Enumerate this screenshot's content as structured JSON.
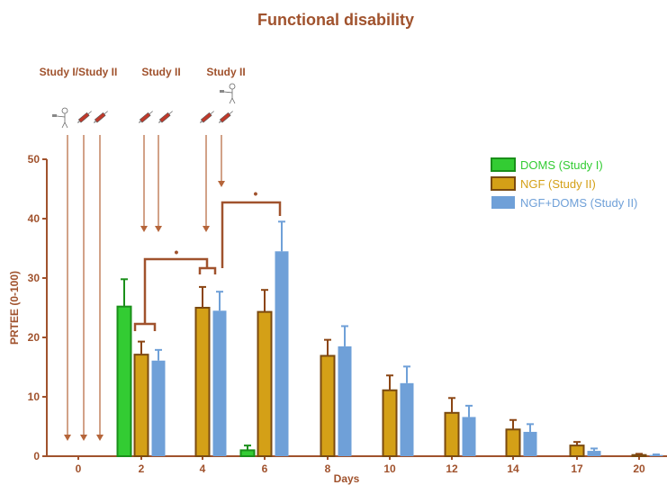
{
  "chart_data": {
    "type": "bar",
    "title": "Functional disability",
    "xlabel": "Days",
    "ylabel": "PRTEE (0-100)",
    "ylim": [
      0,
      50
    ],
    "yticks": [
      0,
      10,
      20,
      30,
      40,
      50
    ],
    "categories": [
      "0",
      "2",
      "4",
      "6",
      "8",
      "10",
      "12",
      "14",
      "17",
      "20"
    ],
    "series": [
      {
        "name": "DOMS (Study I)",
        "color": "#33cc33",
        "values": [
          null,
          25.2,
          null,
          1.0,
          null,
          null,
          null,
          null,
          null,
          null
        ],
        "errors": [
          null,
          4.6,
          null,
          0.8,
          null,
          null,
          null,
          null,
          null,
          null
        ]
      },
      {
        "name": "NGF (Study II)",
        "color": "#d4a017",
        "values": [
          null,
          17.1,
          25.0,
          24.3,
          16.9,
          11.1,
          7.3,
          4.5,
          1.8,
          0.2
        ],
        "errors": [
          null,
          2.2,
          3.5,
          3.7,
          2.7,
          2.5,
          2.5,
          1.6,
          0.6,
          0.2
        ]
      },
      {
        "name": "NGF+DOMS (Study II)",
        "color": "#6fa0d8",
        "values": [
          null,
          16.1,
          24.5,
          34.5,
          18.5,
          12.3,
          6.6,
          4.1,
          0.9,
          0.2
        ],
        "errors": [
          null,
          1.8,
          3.2,
          5.0,
          3.4,
          2.8,
          1.9,
          1.3,
          0.4,
          0.1
        ]
      }
    ],
    "legend_position": "top-right",
    "grid": false,
    "annotations": {
      "study_labels": [
        "Study I/Study II",
        "Study II",
        "Study II"
      ],
      "significance_mark": "•",
      "injection_arrows_days": [
        0,
        0.5,
        0.95,
        2,
        2.4,
        4,
        4.5
      ]
    },
    "axis_color": "#a0522d",
    "arrow_color": "#b5653a",
    "bracket_color": "#a0522d"
  }
}
